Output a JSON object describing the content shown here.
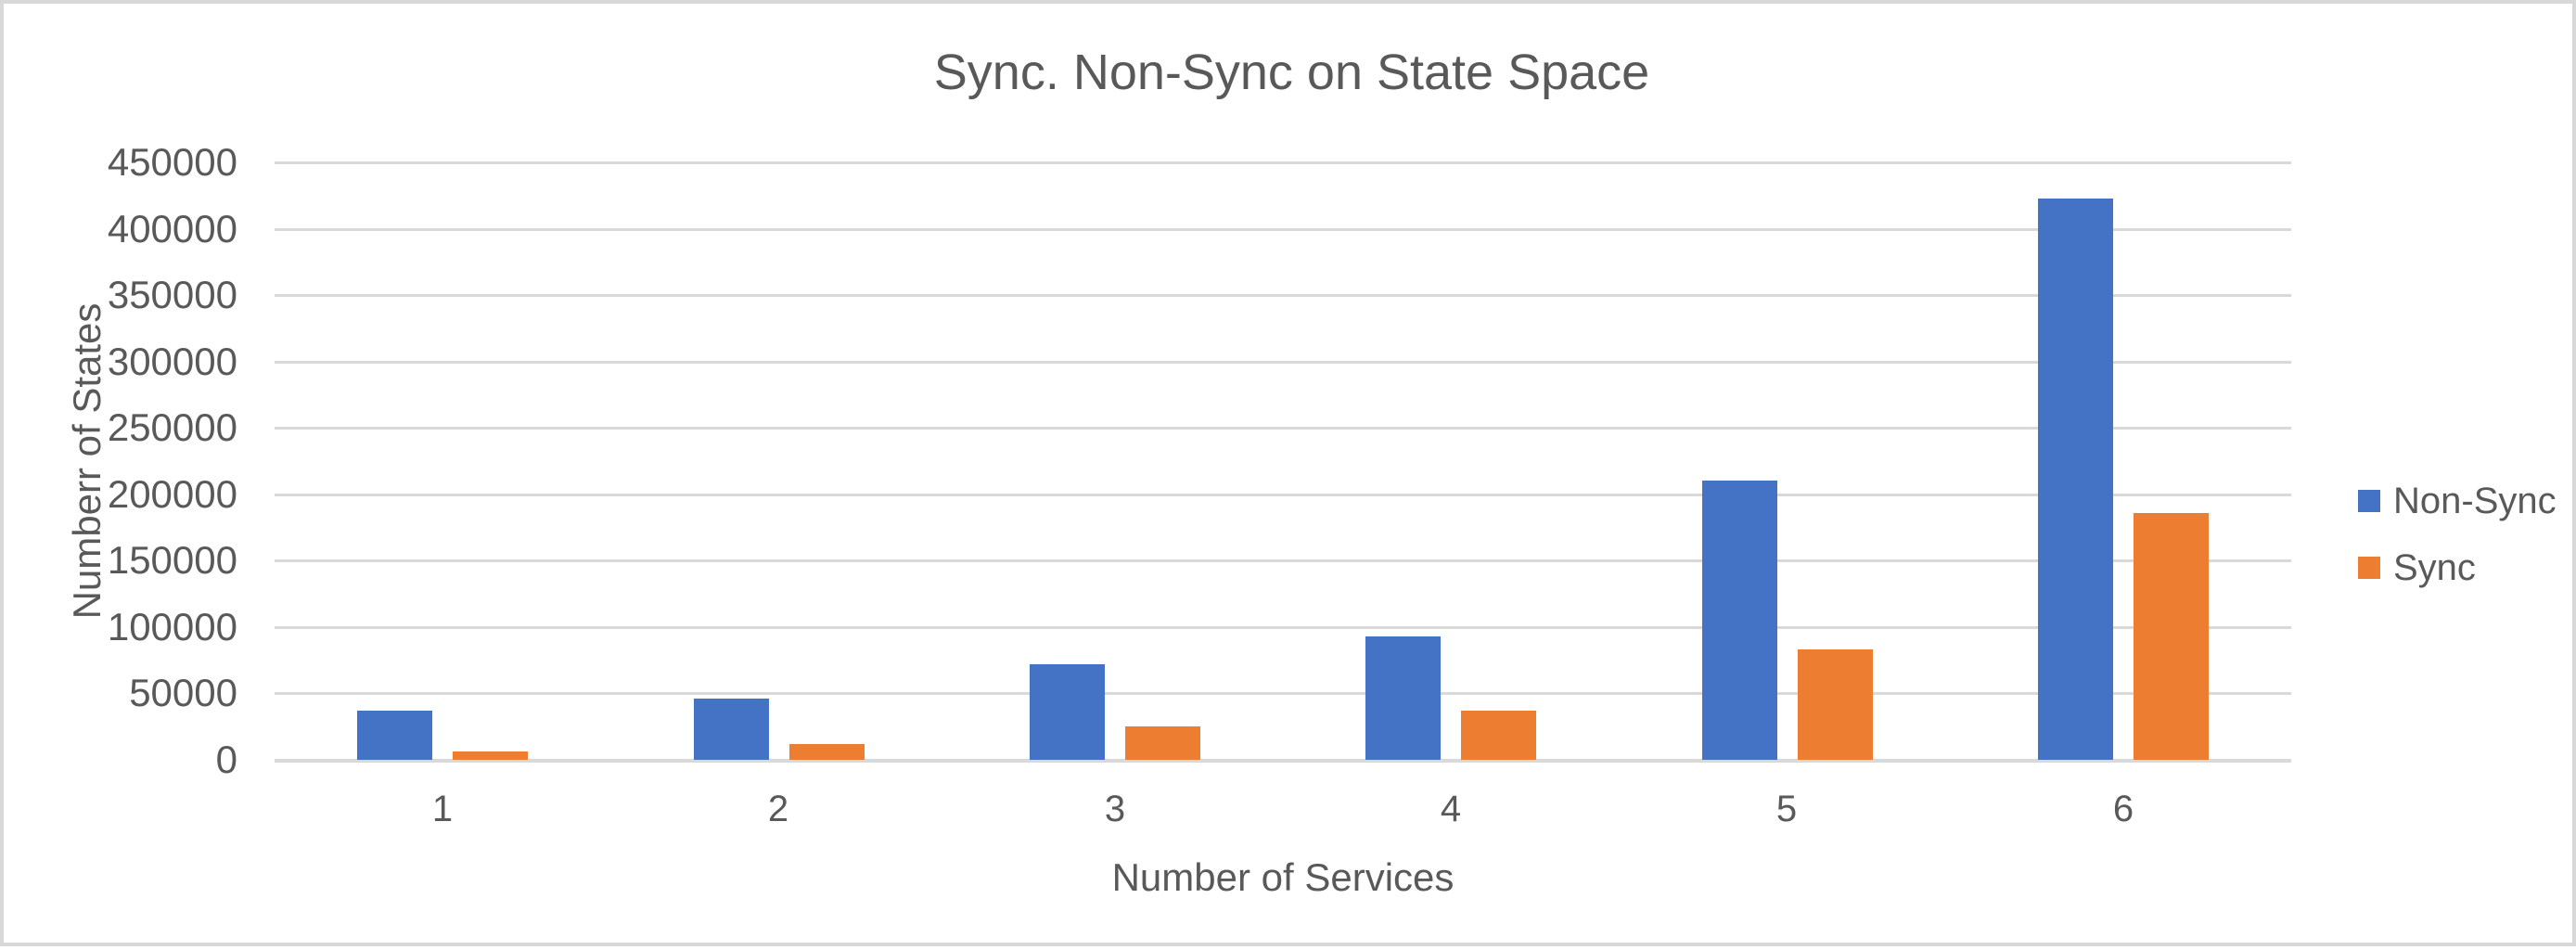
{
  "chart_data": {
    "type": "bar",
    "title": "Sync. Non-Sync on State Space",
    "xlabel": "Number of Services",
    "ylabel": "Numberr of States",
    "categories": [
      "1",
      "2",
      "3",
      "4",
      "5",
      "6"
    ],
    "series": [
      {
        "name": "Non-Sync",
        "color": "#4472C4",
        "values": [
          37000,
          46000,
          72000,
          93000,
          210000,
          423000
        ]
      },
      {
        "name": "Sync",
        "color": "#ED7D31",
        "values": [
          6000,
          12000,
          25000,
          37000,
          83000,
          186000
        ]
      }
    ],
    "ylim": [
      0,
      450000
    ],
    "yticks": [
      0,
      50000,
      100000,
      150000,
      200000,
      250000,
      300000,
      350000,
      400000,
      450000
    ],
    "grid": true,
    "legend_position": "right",
    "colors": {
      "grid": "#D9D9D9",
      "axis_text": "#595959",
      "title_text": "#595959",
      "frame_border": "#D8D8D8",
      "background": "#FFFFFF"
    }
  }
}
